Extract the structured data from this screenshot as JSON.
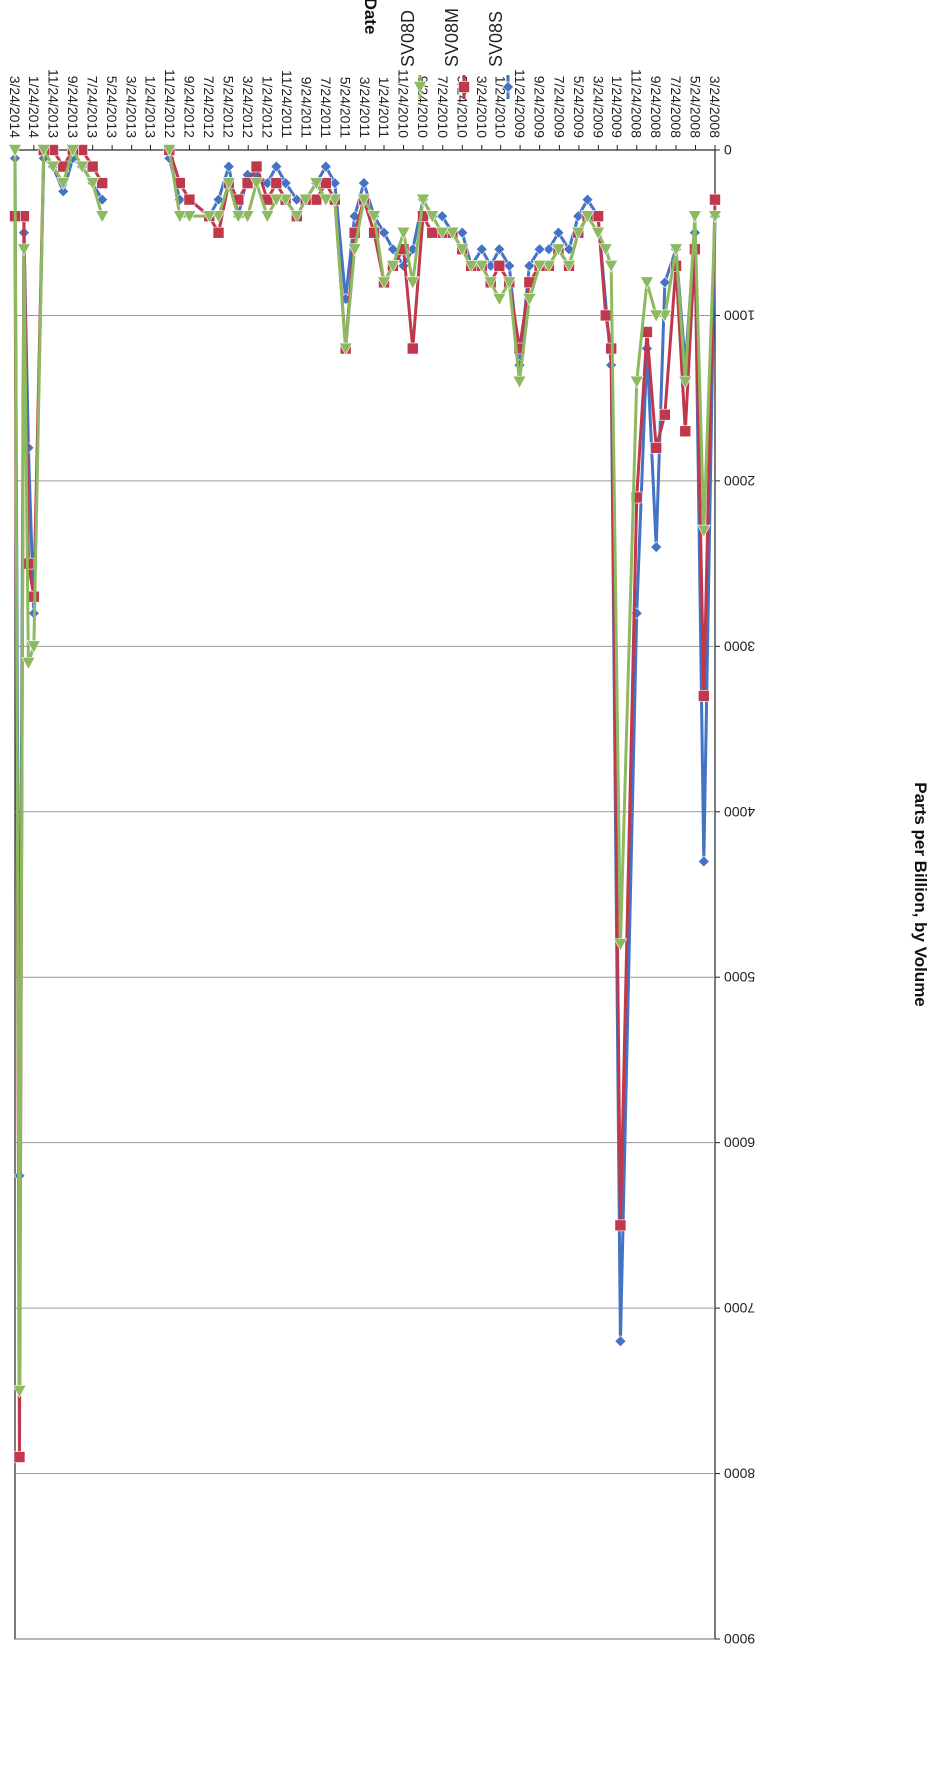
{
  "chart_data": {
    "type": "line",
    "title": "",
    "xlabel": "Date",
    "ylabel": "Parts per Billion, by Volume",
    "ylim": [
      0,
      9000
    ],
    "yticks": [
      0,
      1000,
      2000,
      3000,
      4000,
      5000,
      6000,
      7000,
      8000,
      9000
    ],
    "xlim": [
      "3/24/2008",
      "3/24/2014"
    ],
    "xticks": [
      "3/24/2008",
      "5/24/2008",
      "7/24/2008",
      "9/24/2008",
      "11/24/2008",
      "1/24/2009",
      "3/24/2009",
      "5/24/2009",
      "7/24/2009",
      "9/24/2009",
      "11/24/2009",
      "1/24/2010",
      "3/24/2010",
      "5/24/2010",
      "7/24/2010",
      "9/24/2010",
      "11/24/2010",
      "1/24/2011",
      "3/24/2011",
      "5/24/2011",
      "7/24/2011",
      "9/24/2011",
      "11/24/2011",
      "1/24/2012",
      "3/24/2012",
      "5/24/2012",
      "7/24/2012",
      "9/24/2012",
      "11/24/2012",
      "1/24/2013",
      "3/24/2013",
      "5/24/2013",
      "7/24/2013",
      "9/24/2013",
      "11/24/2013",
      "1/24/2014",
      "3/24/2014"
    ],
    "grid": "horizontal",
    "orientation": "rotated 180 degrees",
    "legend_position": "top-right",
    "series": [
      {
        "name": "SV08S",
        "color": "#4472C4",
        "marker": "diamond",
        "points": [
          [
            "3/24/2008",
            400
          ],
          [
            "4/28/2008",
            4300
          ],
          [
            "5/26/2008",
            500
          ],
          [
            "6/25/2008",
            1300
          ],
          [
            "7/24/2008",
            600
          ],
          [
            "8/28/2008",
            800
          ],
          [
            "9/24/2008",
            2400
          ],
          [
            "10/23/2008",
            1200
          ],
          [
            "11/24/2008",
            2800
          ],
          [
            "1/14/2009",
            7200
          ],
          [
            "2/12/2009",
            1300
          ],
          [
            "3/25/2009",
            400
          ],
          [
            "4/27/2009",
            300
          ],
          [
            "5/26/2009",
            400
          ],
          [
            "6/24/2009",
            600
          ],
          [
            "7/27/2009",
            500
          ],
          [
            "8/26/2009",
            600
          ],
          [
            "9/24/2009",
            600
          ],
          [
            "10/26/2009",
            700
          ],
          [
            "11/26/2009",
            1300
          ],
          [
            "12/28/2009",
            700
          ],
          [
            "1/28/2010",
            600
          ],
          [
            "2/24/2010",
            700
          ],
          [
            "3/24/2010",
            600
          ],
          [
            "4/26/2010",
            700
          ],
          [
            "5/24/2010",
            500
          ],
          [
            "6/24/2010",
            500
          ],
          [
            "7/26/2010",
            400
          ],
          [
            "8/26/2010",
            400
          ],
          [
            "9/24/2010",
            300
          ],
          [
            "10/26/2010",
            600
          ],
          [
            "11/24/2010",
            700
          ],
          [
            "12/27/2010",
            600
          ],
          [
            "1/24/2011",
            500
          ],
          [
            "2/24/2011",
            400
          ],
          [
            "3/28/2011",
            200
          ],
          [
            "4/26/2011",
            400
          ],
          [
            "5/24/2011",
            900
          ],
          [
            "6/27/2011",
            200
          ],
          [
            "7/25/2011",
            100
          ],
          [
            "8/24/2011",
            200
          ],
          [
            "9/26/2011",
            300
          ],
          [
            "10/24/2011",
            300
          ],
          [
            "11/28/2011",
            200
          ],
          [
            "12/27/2011",
            100
          ],
          [
            "1/24/2012",
            200
          ],
          [
            "2/27/2012",
            150
          ],
          [
            "3/26/2012",
            150
          ],
          [
            "4/24/2012",
            400
          ],
          [
            "5/24/2012",
            100
          ],
          [
            "6/25/2012",
            300
          ],
          [
            "7/24/2012",
            400
          ],
          [
            "9/24/2012",
            300
          ],
          [
            "10/24/2012",
            300
          ],
          [
            "11/26/2012",
            50
          ],
          [
            "6/24/2013",
            300
          ],
          [
            "7/24/2013",
            200
          ],
          [
            "8/26/2013",
            100
          ],
          [
            "9/24/2013",
            50
          ],
          [
            "10/24/2013",
            250
          ],
          [
            "11/25/2013",
            100
          ],
          [
            "12/24/2013",
            50
          ],
          [
            "1/24/2014",
            2800
          ],
          [
            "2/10/2014",
            1800
          ],
          [
            "2/24/2014",
            500
          ],
          [
            "3/10/2014",
            6200
          ],
          [
            "3/24/2014",
            50
          ]
        ]
      },
      {
        "name": "SV08M",
        "color": "#C0384B",
        "marker": "square",
        "points": [
          [
            "3/24/2008",
            300
          ],
          [
            "4/28/2008",
            3300
          ],
          [
            "5/26/2008",
            600
          ],
          [
            "6/25/2008",
            1700
          ],
          [
            "7/24/2008",
            700
          ],
          [
            "8/28/2008",
            1600
          ],
          [
            "9/24/2008",
            1800
          ],
          [
            "10/23/2008",
            1100
          ],
          [
            "11/24/2008",
            2100
          ],
          [
            "1/14/2009",
            6500
          ],
          [
            "2/12/2009",
            1200
          ],
          [
            "3/1/2009",
            1000
          ],
          [
            "3/25/2009",
            400
          ],
          [
            "4/27/2009",
            400
          ],
          [
            "5/26/2009",
            500
          ],
          [
            "6/24/2009",
            700
          ],
          [
            "7/27/2009",
            600
          ],
          [
            "8/26/2009",
            700
          ],
          [
            "9/24/2009",
            700
          ],
          [
            "10/26/2009",
            800
          ],
          [
            "11/26/2009",
            1200
          ],
          [
            "12/28/2009",
            800
          ],
          [
            "1/28/2010",
            700
          ],
          [
            "2/24/2010",
            800
          ],
          [
            "3/24/2010",
            700
          ],
          [
            "4/26/2010",
            700
          ],
          [
            "5/24/2010",
            600
          ],
          [
            "6/24/2010",
            500
          ],
          [
            "7/26/2010",
            500
          ],
          [
            "8/26/2010",
            500
          ],
          [
            "9/24/2010",
            400
          ],
          [
            "10/26/2010",
            1200
          ],
          [
            "11/24/2010",
            600
          ],
          [
            "12/27/2010",
            700
          ],
          [
            "1/24/2011",
            800
          ],
          [
            "2/24/2011",
            500
          ],
          [
            "3/28/2011",
            300
          ],
          [
            "4/26/2011",
            500
          ],
          [
            "5/24/2011",
            1200
          ],
          [
            "6/27/2011",
            300
          ],
          [
            "7/25/2011",
            200
          ],
          [
            "8/24/2011",
            300
          ],
          [
            "9/26/2011",
            300
          ],
          [
            "10/24/2011",
            400
          ],
          [
            "11/28/2011",
            300
          ],
          [
            "12/27/2011",
            200
          ],
          [
            "1/24/2012",
            300
          ],
          [
            "2/27/2012",
            100
          ],
          [
            "3/26/2012",
            200
          ],
          [
            "4/24/2012",
            300
          ],
          [
            "5/24/2012",
            200
          ],
          [
            "6/25/2012",
            500
          ],
          [
            "7/24/2012",
            400
          ],
          [
            "9/24/2012",
            300
          ],
          [
            "10/24/2012",
            200
          ],
          [
            "11/26/2012",
            0
          ],
          [
            "6/24/2013",
            200
          ],
          [
            "7/24/2013",
            100
          ],
          [
            "8/26/2013",
            0
          ],
          [
            "9/24/2013",
            0
          ],
          [
            "10/24/2013",
            100
          ],
          [
            "11/25/2013",
            0
          ],
          [
            "12/24/2013",
            0
          ],
          [
            "1/24/2014",
            2700
          ],
          [
            "2/10/2014",
            2500
          ],
          [
            "2/24/2014",
            400
          ],
          [
            "3/10/2014",
            7900
          ],
          [
            "3/24/2014",
            400
          ]
        ]
      },
      {
        "name": "SV08D",
        "color": "#8DB960",
        "marker": "triangle",
        "points": [
          [
            "3/24/2008",
            400
          ],
          [
            "4/28/2008",
            2300
          ],
          [
            "5/26/2008",
            400
          ],
          [
            "6/25/2008",
            1400
          ],
          [
            "7/24/2008",
            600
          ],
          [
            "8/28/2008",
            1000
          ],
          [
            "9/24/2008",
            1000
          ],
          [
            "10/23/2008",
            800
          ],
          [
            "11/24/2008",
            1400
          ],
          [
            "1/14/2009",
            4800
          ],
          [
            "2/12/2009",
            700
          ],
          [
            "3/1/2009",
            600
          ],
          [
            "3/25/2009",
            500
          ],
          [
            "4/27/2009",
            400
          ],
          [
            "5/26/2009",
            500
          ],
          [
            "6/24/2009",
            700
          ],
          [
            "7/27/2009",
            600
          ],
          [
            "8/26/2009",
            700
          ],
          [
            "9/24/2009",
            700
          ],
          [
            "10/26/2009",
            900
          ],
          [
            "11/26/2009",
            1400
          ],
          [
            "12/28/2009",
            800
          ],
          [
            "1/28/2010",
            900
          ],
          [
            "2/24/2010",
            800
          ],
          [
            "3/24/2010",
            700
          ],
          [
            "4/26/2010",
            700
          ],
          [
            "5/24/2010",
            600
          ],
          [
            "6/24/2010",
            500
          ],
          [
            "7/26/2010",
            500
          ],
          [
            "8/26/2010",
            400
          ],
          [
            "9/24/2010",
            300
          ],
          [
            "10/26/2010",
            800
          ],
          [
            "11/24/2010",
            500
          ],
          [
            "12/27/2010",
            700
          ],
          [
            "1/24/2011",
            800
          ],
          [
            "2/24/2011",
            400
          ],
          [
            "3/28/2011",
            300
          ],
          [
            "4/26/2011",
            600
          ],
          [
            "5/24/2011",
            1200
          ],
          [
            "6/27/2011",
            300
          ],
          [
            "7/25/2011",
            300
          ],
          [
            "8/24/2011",
            200
          ],
          [
            "9/26/2011",
            300
          ],
          [
            "10/24/2011",
            400
          ],
          [
            "11/28/2011",
            300
          ],
          [
            "12/27/2011",
            300
          ],
          [
            "1/24/2012",
            400
          ],
          [
            "2/27/2012",
            200
          ],
          [
            "3/26/2012",
            400
          ],
          [
            "4/24/2012",
            400
          ],
          [
            "5/24/2012",
            200
          ],
          [
            "6/25/2012",
            400
          ],
          [
            "7/24/2012",
            400
          ],
          [
            "9/24/2012",
            400
          ],
          [
            "10/24/2012",
            400
          ],
          [
            "11/26/2012",
            0
          ],
          [
            "6/24/2013",
            400
          ],
          [
            "7/24/2013",
            200
          ],
          [
            "8/26/2013",
            100
          ],
          [
            "9/24/2013",
            0
          ],
          [
            "10/24/2013",
            200
          ],
          [
            "11/25/2013",
            100
          ],
          [
            "12/24/2013",
            0
          ],
          [
            "1/24/2014",
            3000
          ],
          [
            "2/10/2014",
            3100
          ],
          [
            "2/24/2014",
            600
          ],
          [
            "3/10/2014",
            7500
          ],
          [
            "3/24/2014",
            0
          ]
        ]
      }
    ]
  }
}
